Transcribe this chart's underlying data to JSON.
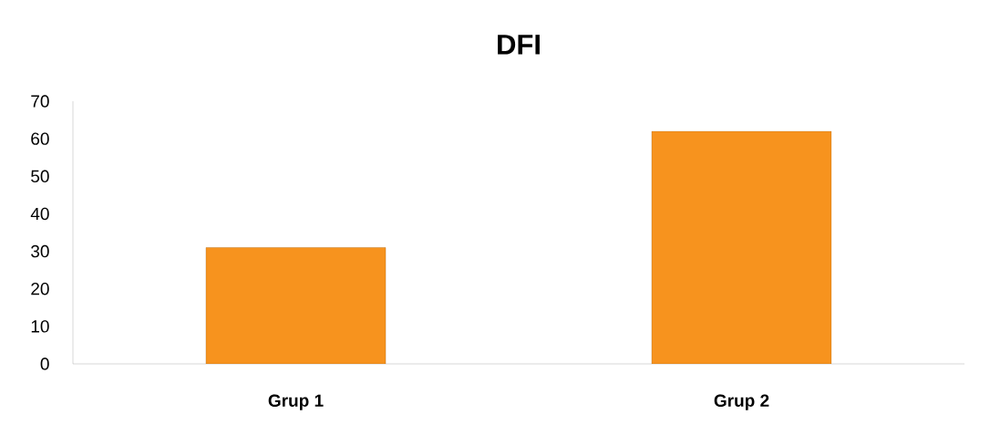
{
  "chart_data": {
    "type": "bar",
    "title": "DFI",
    "categories": [
      "Grup 1",
      "Grup 2"
    ],
    "values": [
      31,
      62
    ],
    "color": "#f7931e",
    "ylim": [
      0,
      70
    ],
    "yticks": [
      0,
      10,
      20,
      30,
      40,
      50,
      60,
      70
    ]
  }
}
